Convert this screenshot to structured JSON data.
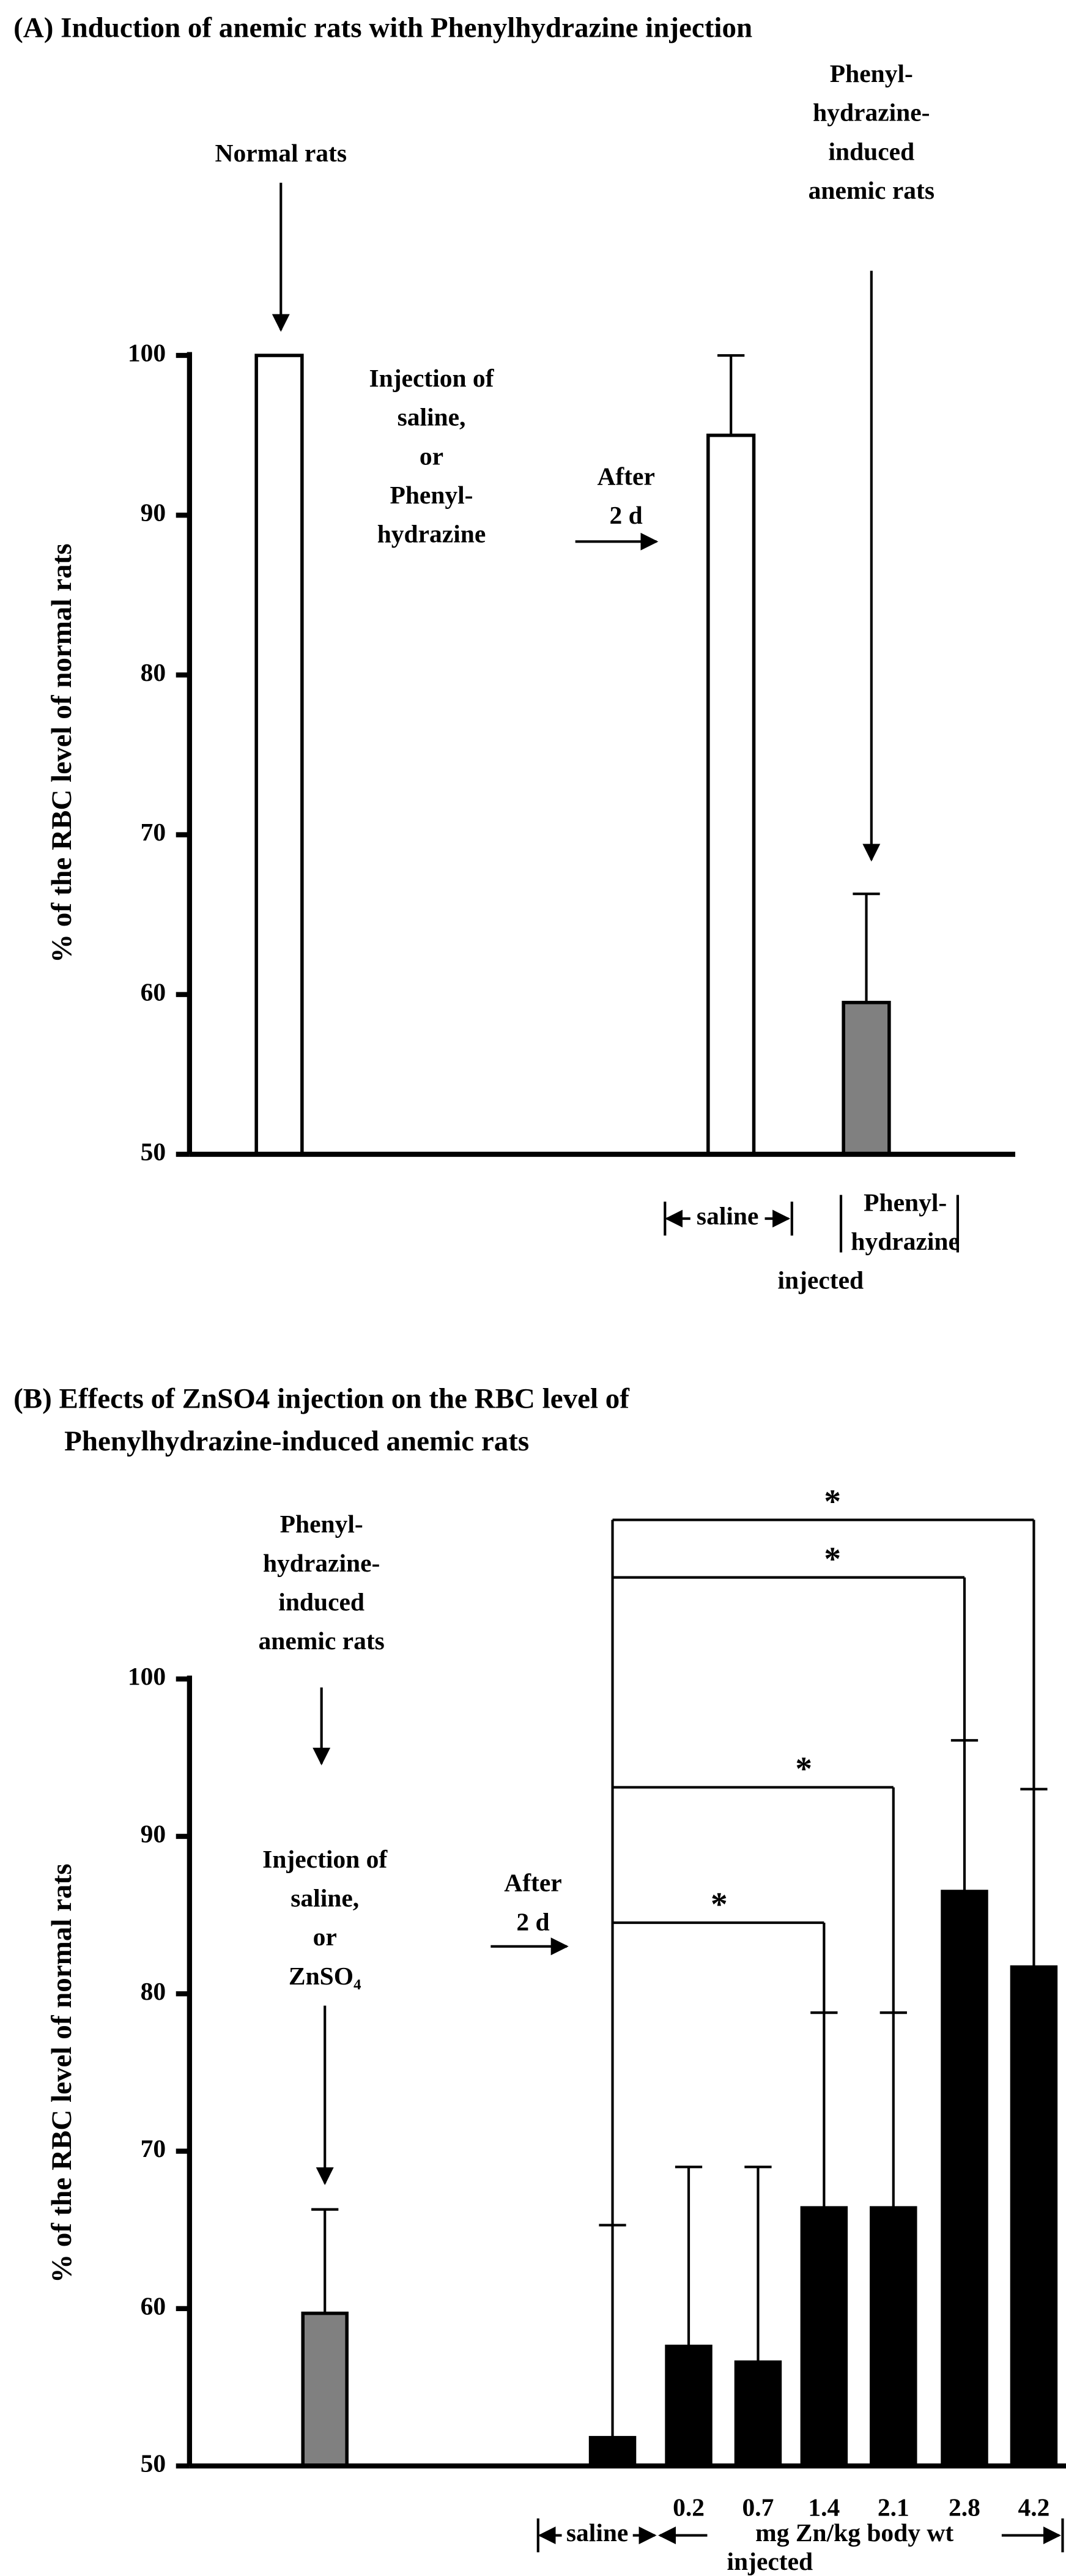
{
  "chart_data": [
    {
      "type": "bar",
      "title": "(A) Induction of anemic rats with Phenylhydrazine injection",
      "y_label": "% of the RBC level of normal rats",
      "categories": [
        null,
        null,
        null
      ],
      "values": [
        100,
        95,
        59.5
      ],
      "errors": [
        0,
        5,
        6.8
      ],
      "colors": [
        "#ffffff",
        "#ffffff",
        "#808080"
      ],
      "ylim": [
        50,
        100
      ],
      "yticks": [
        50,
        60,
        70,
        80,
        90,
        100
      ],
      "annotations": [
        [
          "Normal rats"
        ],
        [
          "Injection of",
          "saline,",
          "or",
          "Phenyl-",
          "hydrazine"
        ],
        [
          "After",
          "2 d"
        ],
        [
          "Phenyl-",
          "hydrazine-",
          "induced",
          "anemic rats"
        ],
        [
          "saline"
        ],
        [
          "Phenyl-",
          "hydrazine"
        ],
        [
          "injected"
        ]
      ]
    },
    {
      "type": "bar",
      "title": "(B) Effects of ZnSO4 injection on the RBC level of",
      "subtitle": "Phenylhydrazine-induced anemic rats",
      "y_label": "% of the RBC level of normal rats",
      "categories": [
        null,
        null,
        "0.2",
        "0.7",
        "1.4",
        "2.1",
        "2.8",
        "4.2"
      ],
      "values": [
        59.7,
        51.8,
        57.6,
        56.6,
        66.4,
        66.4,
        86.5,
        81.7
      ],
      "errors": [
        6.6,
        13.5,
        11.4,
        12.4,
        12.4,
        12.4,
        9.6,
        11.3
      ],
      "colors": [
        "#808080",
        "#000000",
        "#000000",
        "#000000",
        "#000000",
        "#000000",
        "#000000",
        "#000000"
      ],
      "ylim": [
        50,
        100
      ],
      "yticks": [
        50,
        60,
        70,
        80,
        90,
        100
      ],
      "significance_labels": [
        "*",
        "*",
        "*",
        "*"
      ],
      "annotations": [
        [
          "Phenyl-",
          "hydrazine-",
          "induced",
          "anemic rats"
        ],
        [
          "Injection of",
          "saline,",
          "or",
          "ZnSO₄"
        ],
        [
          "After",
          "2 d"
        ],
        [
          "saline"
        ],
        [
          "mg Zn/kg body wt"
        ],
        [
          "injected"
        ]
      ]
    }
  ]
}
